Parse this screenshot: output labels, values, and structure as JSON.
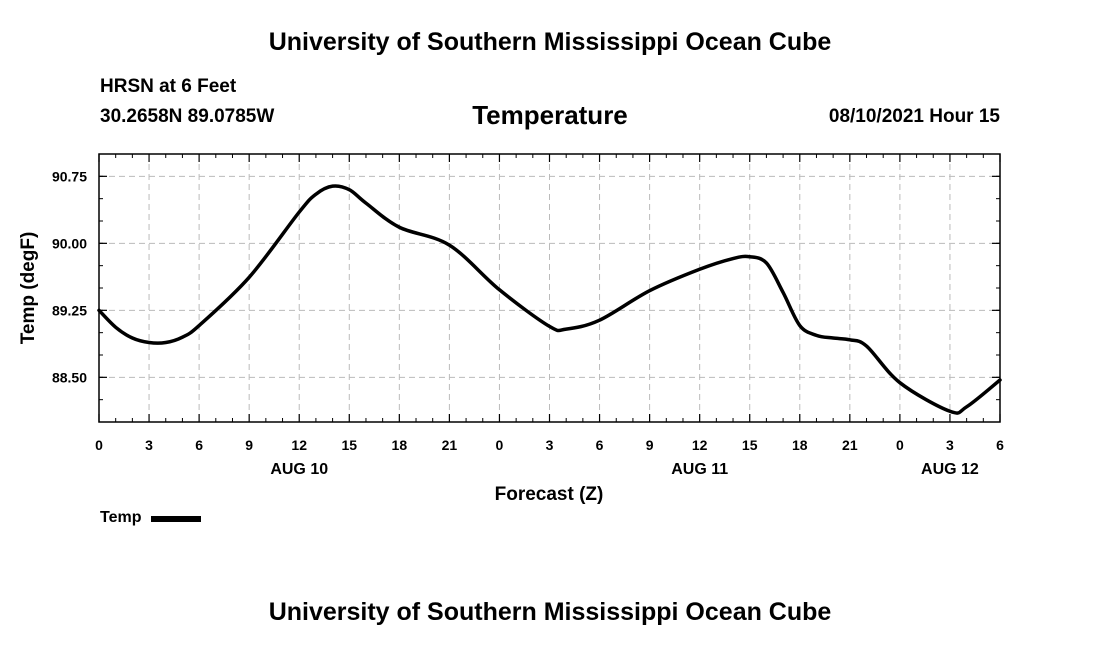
{
  "header": {
    "title": "University of Southern Mississippi Ocean Cube",
    "station": "HRSN at 6 Feet",
    "coords": "30.2658N  89.0785W",
    "parameter": "Temperature",
    "datetime": "08/10/2021 Hour 15"
  },
  "footer": {
    "title": "University of Southern Mississippi Ocean Cube"
  },
  "legend": {
    "label": "Temp"
  },
  "chart_data": {
    "type": "line",
    "title": "Temperature",
    "xlabel": "Forecast (Z)",
    "ylabel": "Temp (degF)",
    "ylim": [
      88.0,
      91.0
    ],
    "yticks": [
      "88.50",
      "89.25",
      "90.00",
      "90.75"
    ],
    "xlim": [
      0,
      54
    ],
    "xtick_labels": [
      "0",
      "3",
      "6",
      "9",
      "12",
      "15",
      "18",
      "21",
      "0",
      "3",
      "6",
      "9",
      "12",
      "15",
      "18",
      "21",
      "0",
      "3",
      "6"
    ],
    "date_labels": [
      {
        "hour": 12,
        "label": "AUG 10"
      },
      {
        "hour": 36,
        "label": "AUG 11"
      },
      {
        "hour": 51,
        "label": "AUG 12"
      }
    ],
    "grid": true,
    "series": [
      {
        "name": "Temp",
        "x": [
          0,
          1,
          2,
          3,
          4,
          5,
          6,
          9,
          12,
          13,
          14,
          15,
          16,
          18,
          21,
          24,
          27,
          28,
          30,
          33,
          36,
          38,
          39,
          40,
          41,
          42,
          43,
          44,
          45,
          46,
          48,
          51,
          52,
          54
        ],
        "y": [
          89.25,
          89.06,
          88.94,
          88.89,
          88.89,
          88.95,
          89.08,
          89.62,
          90.35,
          90.55,
          90.64,
          90.6,
          90.45,
          90.18,
          89.98,
          89.48,
          89.07,
          89.04,
          89.14,
          89.47,
          89.71,
          89.83,
          89.85,
          89.78,
          89.45,
          89.08,
          88.97,
          88.94,
          88.92,
          88.85,
          88.44,
          88.12,
          88.17,
          88.47
        ]
      }
    ]
  }
}
